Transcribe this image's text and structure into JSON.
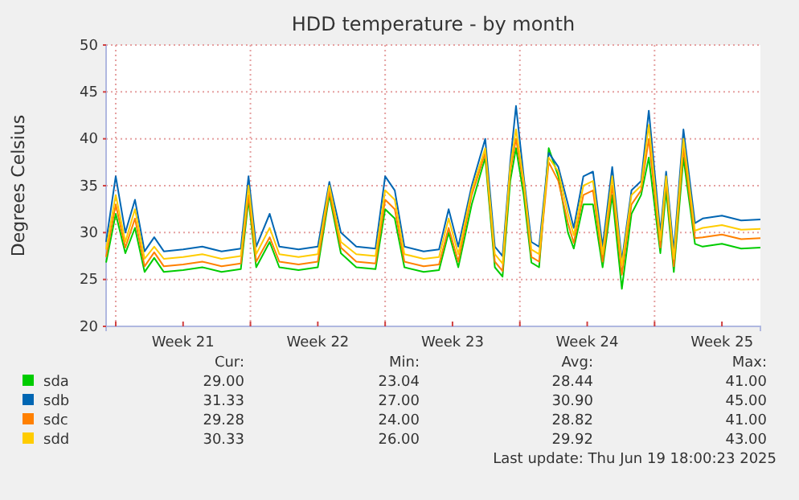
{
  "chart_data": {
    "type": "line",
    "title": "HDD temperature - by month",
    "ylabel": "Degrees Celsius",
    "x": [
      "2025-05-18T12:00",
      "2025-05-19T00:00",
      "2025-05-19T12:00",
      "2025-05-20T00:00",
      "2025-05-20T12:00",
      "2025-05-21T00:00",
      "2025-05-21T12:00",
      "2025-05-22T12:00",
      "2025-05-23T12:00",
      "2025-05-24T12:00",
      "2025-05-25T12:00",
      "2025-05-25T21:36",
      "2025-05-26T07:12",
      "2025-05-27T00:00",
      "2025-05-27T12:00",
      "2025-05-28T12:00",
      "2025-05-29T12:00",
      "2025-05-30T02:24",
      "2025-05-30T16:48",
      "2025-05-31T12:00",
      "2025-06-01T12:00",
      "2025-06-02T00:00",
      "2025-06-02T12:00",
      "2025-06-03T00:00",
      "2025-06-04T00:00",
      "2025-06-04T19:12",
      "2025-06-05T07:12",
      "2025-06-05T19:12",
      "2025-06-06T12:00",
      "2025-06-07T04:48",
      "2025-06-07T16:48",
      "2025-06-08T02:24",
      "2025-06-08T12:00",
      "2025-06-08T19:12",
      "2025-06-09T04:48",
      "2025-06-09T14:24",
      "2025-06-10T00:00",
      "2025-06-10T12:00",
      "2025-06-11T00:00",
      "2025-06-11T12:00",
      "2025-06-11T19:12",
      "2025-06-12T07:12",
      "2025-06-12T19:12",
      "2025-06-13T07:12",
      "2025-06-13T19:12",
      "2025-06-14T07:12",
      "2025-06-14T19:12",
      "2025-06-15T07:12",
      "2025-06-15T16:48",
      "2025-06-16T07:12",
      "2025-06-16T14:24",
      "2025-06-17T00:00",
      "2025-06-17T12:00",
      "2025-06-18T02:24",
      "2025-06-18T12:00",
      "2025-06-19T12:00",
      "2025-06-20T12:00",
      "2025-06-21T12:00"
    ],
    "series": [
      {
        "name": "sda",
        "color": "#00cc00",
        "values": [
          26.8,
          32,
          27.8,
          30.5,
          25.8,
          27.3,
          25.8,
          26,
          26.3,
          25.8,
          26.1,
          33.5,
          26.3,
          29,
          26.3,
          26,
          26.3,
          34,
          27.8,
          26.3,
          26.1,
          32.5,
          31.5,
          26.3,
          25.8,
          26,
          30,
          26.3,
          33,
          38,
          26.3,
          25.3,
          35.5,
          39,
          34,
          26.8,
          26.3,
          39,
          36,
          30,
          28.3,
          33,
          33,
          26.3,
          34,
          24,
          32,
          34,
          38,
          27.8,
          34.5,
          25.8,
          38,
          28.8,
          28.5,
          28.8,
          28.3,
          28.4
        ]
      },
      {
        "name": "sdb",
        "color": "#0066b3",
        "values": [
          29,
          36,
          30,
          33.5,
          28,
          29.5,
          28,
          28.2,
          28.5,
          28,
          28.3,
          36,
          28.5,
          32,
          28.5,
          28.2,
          28.5,
          35.4,
          30,
          28.5,
          28.3,
          36,
          34.5,
          28.5,
          28,
          28.2,
          32.5,
          28.5,
          35,
          40,
          28.5,
          27.5,
          37.5,
          43.5,
          36,
          29,
          28.5,
          38.5,
          37,
          33,
          30.5,
          36,
          36.5,
          28.5,
          37,
          27,
          34.5,
          35.5,
          43,
          30,
          36.5,
          28,
          41,
          31,
          31.5,
          31.8,
          31.3,
          31.4
        ]
      },
      {
        "name": "sdc",
        "color": "#ff8000",
        "values": [
          27.4,
          33,
          28.4,
          31.5,
          26.4,
          27.9,
          26.4,
          26.6,
          26.9,
          26.4,
          26.7,
          34,
          26.9,
          29.5,
          26.9,
          26.6,
          26.9,
          34.4,
          28.4,
          26.9,
          26.7,
          33.5,
          32.5,
          26.9,
          26.4,
          26.6,
          30.5,
          26.9,
          34,
          38.5,
          26.9,
          25.9,
          36.5,
          40,
          35,
          27.4,
          26.9,
          37.5,
          35.5,
          31,
          28.9,
          34,
          34.5,
          26.9,
          35,
          25.5,
          33,
          34.5,
          40,
          28.4,
          35.5,
          26.4,
          39,
          29.4,
          29.5,
          29.8,
          29.3,
          29.4
        ]
      },
      {
        "name": "sdd",
        "color": "#ffcc00",
        "values": [
          28.2,
          34,
          29,
          32.5,
          27.2,
          28.5,
          27.2,
          27.4,
          27.7,
          27.2,
          27.5,
          35,
          27.7,
          30.5,
          27.7,
          27.4,
          27.7,
          35,
          29,
          27.7,
          27.5,
          34.5,
          33.5,
          27.7,
          27.2,
          27.4,
          31.5,
          27.7,
          34.5,
          39,
          27.7,
          26.7,
          37,
          41,
          35.5,
          28.2,
          27.7,
          38,
          36.5,
          32,
          29.7,
          35,
          35.5,
          27.7,
          36,
          26.5,
          34,
          35,
          41.5,
          29.2,
          36,
          27.2,
          40,
          30.2,
          30.5,
          30.8,
          30.3,
          30.4
        ]
      }
    ],
    "xlim": [
      "2025-05-18T12:00",
      "2025-06-21T12:00"
    ],
    "xticks": [
      {
        "value": "2025-05-19",
        "label": null
      },
      {
        "value": "2025-05-22T12:00",
        "label": "Week 21"
      },
      {
        "value": "2025-05-26",
        "label": null
      },
      {
        "value": "2025-05-29T12:00",
        "label": "Week 22"
      },
      {
        "value": "2025-06-02",
        "label": null
      },
      {
        "value": "2025-06-05T12:00",
        "label": "Week 23"
      },
      {
        "value": "2025-06-09",
        "label": null
      },
      {
        "value": "2025-06-12T12:00",
        "label": "Week 24"
      },
      {
        "value": "2025-06-16",
        "label": null
      },
      {
        "value": "2025-06-19T12:00",
        "label": "Week 25"
      }
    ],
    "ylim": [
      20,
      50
    ],
    "yticks": [
      20,
      25,
      30,
      35,
      40,
      45,
      50
    ],
    "grid": true,
    "legend": "bottom",
    "annotations": [
      "Cur:",
      "Min:",
      "Avg:",
      "Max:",
      "29.00",
      "23.04",
      "28.44",
      "41.00",
      "31.33",
      "27.00",
      "30.90",
      "45.00",
      "29.28",
      "24.00",
      "28.82",
      "41.00",
      "30.33",
      "26.00",
      "29.92",
      "43.00",
      "Last update: Thu Jun 19 18:00:23 2025"
    ]
  }
}
